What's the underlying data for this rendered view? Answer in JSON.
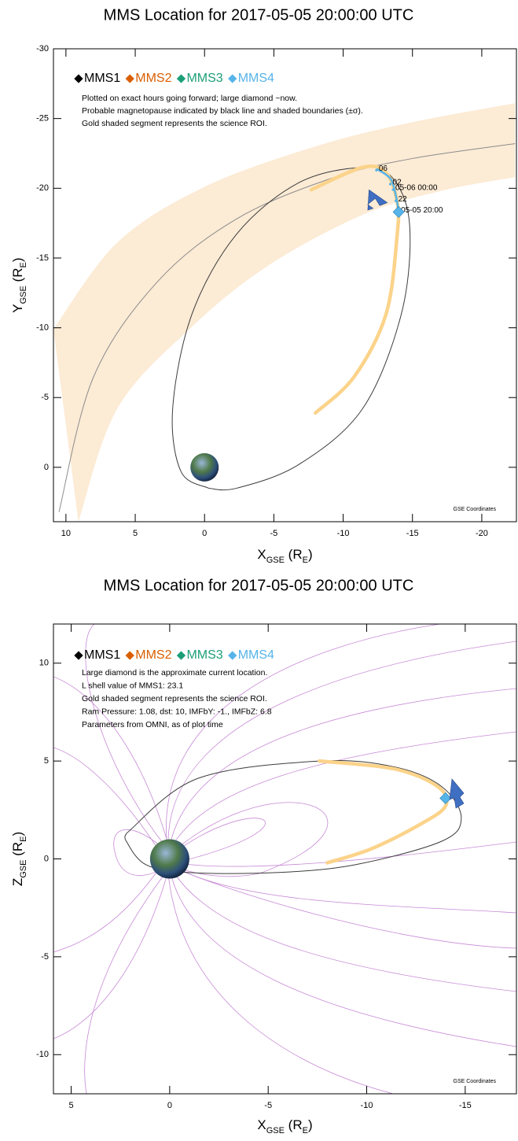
{
  "chart_data": [
    {
      "type": "line",
      "title": "MMS Location for 2017-05-05 20:00:00 UTC",
      "xlabel": [
        "X",
        "GSE",
        " (R",
        "E",
        ")"
      ],
      "ylabel": [
        "Y",
        "GSE",
        " (R",
        "E",
        ")"
      ],
      "xlim": [
        10.9,
        -22.5
      ],
      "ylim": [
        3.9,
        -30
      ],
      "xticks": [
        10,
        5,
        0,
        -5,
        -10,
        -15,
        -20
      ],
      "yticks": [
        0,
        -5,
        -10,
        -15,
        -20,
        -25,
        -30
      ],
      "legend": [
        {
          "name": "MMS1",
          "color": "#000000"
        },
        {
          "name": "MMS2",
          "color": "#d95f02"
        },
        {
          "name": "MMS3",
          "color": "#1b9e77"
        },
        {
          "name": "MMS4",
          "color": "#56b4e9"
        }
      ],
      "notes": [
        "Plotted on exact hours going forward; large diamond ~now.",
        "Probable magnetopause indicated by black line and shaded boundaries (±σ).",
        "Gold shaded segment represents the science ROI."
      ],
      "footnote": "GSE Coordinates",
      "magnetopause_band": {
        "color": "#fcebd5",
        "outer": {
          "x": [
            10.9,
            6.3,
            0,
            -8.0,
            -14.8,
            -22.4
          ],
          "y": [
            -9.9,
            -16.1,
            -20.1,
            -23.0,
            -24.7,
            -26.1
          ]
        },
        "inner": {
          "x": [
            9.1,
            6.3,
            1.1,
            -4.5,
            -11.4,
            -17.0,
            -22.4
          ],
          "y": [
            3.9,
            -4.2,
            -9.9,
            -14.4,
            -18.1,
            -19.8,
            -20.8
          ]
        }
      },
      "magnetopause": {
        "color": "#8c8c8c",
        "x": [
          10.5,
          8.0,
          3.4,
          -2.3,
          -9.1,
          -14.8,
          -22.4
        ],
        "y": [
          3.2,
          -6.5,
          -13.3,
          -17.8,
          -20.7,
          -22.1,
          -23.2
        ]
      },
      "orbit": {
        "color": "#3c3c3c",
        "x": [
          -0.3,
          1.7,
          2.3,
          0.9,
          -2.3,
          -6.8,
          -11.4,
          -13.6,
          -14.8,
          -14.2,
          -11.4,
          -6.8,
          -2.3,
          -0.3
        ],
        "y": [
          1.5,
          0.3,
          -4.2,
          -11,
          -16.7,
          -20.4,
          -21.5,
          -20.7,
          -17.3,
          -11,
          -4.2,
          -0.2,
          1.5,
          1.5
        ]
      },
      "roi": {
        "color": "#fbd38a",
        "x": [
          -7.7,
          -11.4,
          -13.1,
          -13.9,
          -13.9,
          -13.1,
          -10.8,
          -8.0
        ],
        "y": [
          -19.9,
          -21.5,
          -21.1,
          -19.0,
          -16.7,
          -11,
          -6.5,
          -3.9
        ]
      },
      "track": {
        "color": "#56b4e9",
        "x": [
          -12.4,
          -13.4,
          -13.8,
          -14.0
        ],
        "y": [
          -21.4,
          -20.7,
          -19.5,
          -18.3
        ]
      },
      "hour_marks": [
        {
          "label": "06",
          "x": -12.4,
          "y": -21.3
        },
        {
          "label": "02",
          "x": -13.4,
          "y": -20.3
        },
        {
          "label": "05-06 00:00",
          "x": -13.6,
          "y": -19.9
        },
        {
          "label": "22",
          "x": -13.8,
          "y": -19.1
        },
        {
          "label": "05-05 20:00",
          "x": -14.0,
          "y": -18.3
        }
      ],
      "current": {
        "x": -14.0,
        "y": -18.3,
        "color": "#56b4e9"
      }
    },
    {
      "type": "line",
      "title": "MMS Location for 2017-05-05 20:00:00 UTC",
      "xlabel": [
        "X",
        "GSE",
        " (R",
        "E",
        ")"
      ],
      "ylabel": [
        "Z",
        "GSE",
        " (R",
        "E",
        ")"
      ],
      "xlim": [
        5.9,
        -17.6
      ],
      "ylim": [
        -12,
        12
      ],
      "xticks": [
        5,
        0,
        -5,
        -10,
        -15
      ],
      "yticks": [
        -10,
        -5,
        0,
        5,
        10
      ],
      "legend": [
        {
          "name": "MMS1",
          "color": "#000000"
        },
        {
          "name": "MMS2",
          "color": "#d95f02"
        },
        {
          "name": "MMS3",
          "color": "#1b9e77"
        },
        {
          "name": "MMS4",
          "color": "#56b4e9"
        }
      ],
      "notes": [
        "Large diamond is the approximate current location.",
        "L shell value of MMS1: 23.1",
        "Gold shaded segment represents the science ROI.",
        "Ram Pressure: 1.08, dst: 10, IMFbY: -1., IMFbZ: 6.8",
        "Parameters from OMNI, as of plot time"
      ],
      "footnote": "GSE Coordinates",
      "orbit": {
        "color": "#3c3c3c",
        "x": [
          2.2,
          -1.4,
          -7.6,
          -11.4,
          -13.8,
          -14.8,
          -13.8,
          -9.4,
          -5.4,
          -1.0,
          1.2,
          2.2,
          2.2
        ],
        "y": [
          1.3,
          4.1,
          5.0,
          4.7,
          3.7,
          2.1,
          0.9,
          -0.3,
          -0.7,
          -0.7,
          -0.3,
          0.9,
          1.3
        ]
      },
      "roi": {
        "color": "#fbd38a",
        "x": [
          -7.6,
          -11.4,
          -13.6,
          -14.0,
          -12.6,
          -10.2,
          -8.0
        ],
        "y": [
          5.0,
          4.6,
          3.7,
          2.7,
          1.7,
          0.5,
          -0.2
        ]
      },
      "current": {
        "x": -14.0,
        "y": 3.1,
        "color": "#56b4e9"
      }
    }
  ]
}
